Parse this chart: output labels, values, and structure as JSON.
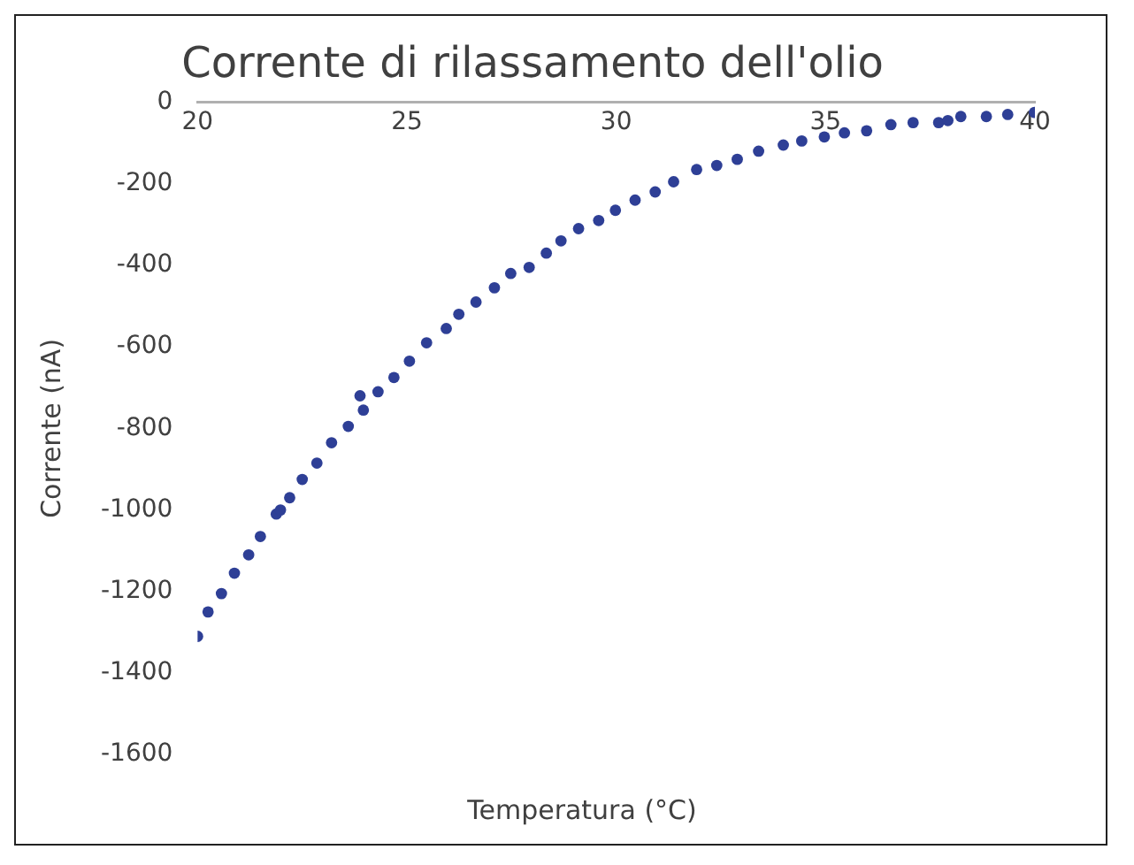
{
  "chart_data": {
    "type": "scatter",
    "title": "Corrente di rilassamento dell'olio",
    "xlabel": "Temperatura (°C)",
    "ylabel": "Corrente (nA)",
    "xlim": [
      20,
      40
    ],
    "xticks": [
      20,
      25,
      30,
      35,
      40
    ],
    "ylim": [
      -1600,
      0
    ],
    "yticks": [
      -1600,
      -1400,
      -1200,
      -1000,
      -800,
      -600,
      -400,
      -200,
      0
    ],
    "grid": false,
    "legend": false,
    "marker": "circle",
    "series": [
      {
        "color": "#2e3f96",
        "x": [
          20,
          20.25,
          20.57,
          20.88,
          21.22,
          21.5,
          21.88,
          21.98,
          22.2,
          22.5,
          22.85,
          23.2,
          23.6,
          23.88,
          23.96,
          24.31,
          24.69,
          25.06,
          25.47,
          25.94,
          26.24,
          26.65,
          27.09,
          27.48,
          27.92,
          28.33,
          28.68,
          29.1,
          29.58,
          29.98,
          30.45,
          30.93,
          31.37,
          31.92,
          32.4,
          32.89,
          33.4,
          33.99,
          34.43,
          34.97,
          35.45,
          35.98,
          36.56,
          37.09,
          37.7,
          37.92,
          38.23,
          38.84,
          39.35,
          39.99
        ],
        "values": [
          -1310,
          -1250,
          -1205,
          -1155,
          -1110,
          -1065,
          -1010,
          -1000,
          -970,
          -925,
          -885,
          -835,
          -795,
          -720,
          -755,
          -710,
          -675,
          -635,
          -590,
          -555,
          -520,
          -490,
          -455,
          -420,
          -405,
          -370,
          -340,
          -310,
          -290,
          -265,
          -240,
          -220,
          -195,
          -165,
          -155,
          -140,
          -120,
          -105,
          -95,
          -85,
          -75,
          -70,
          -55,
          -50,
          -50,
          -45,
          -35,
          -35,
          -30,
          -25
        ]
      }
    ]
  }
}
